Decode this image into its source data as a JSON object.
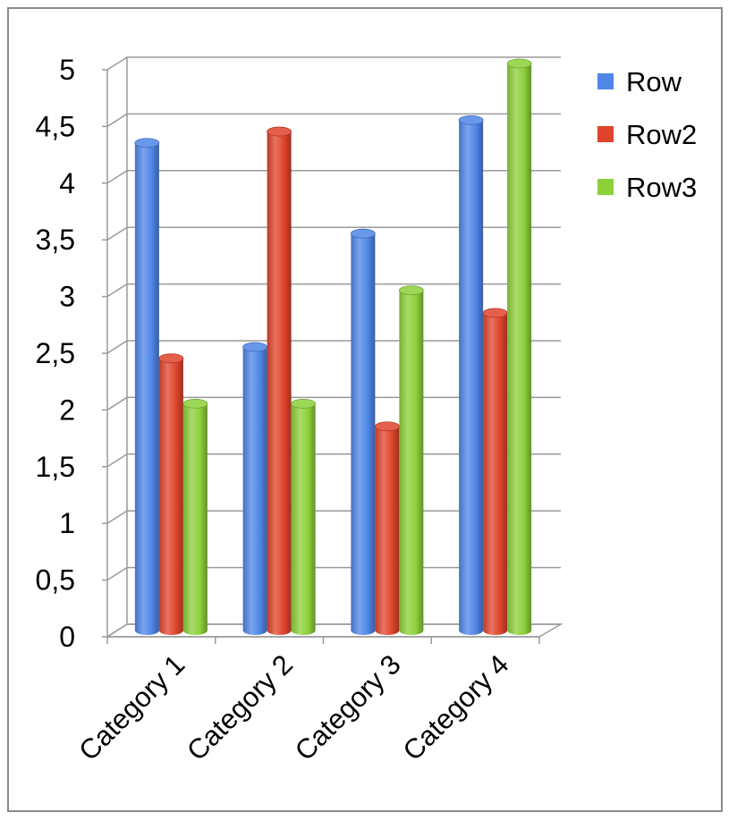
{
  "chart_data": {
    "type": "bar",
    "style": "3d-cylinder",
    "categories": [
      "Category 1",
      "Category 2",
      "Category 3",
      "Category 4"
    ],
    "series": [
      {
        "name": "Row",
        "values": [
          4.3,
          2.5,
          3.5,
          4.5
        ],
        "color": "#4f86e8"
      },
      {
        "name": "Row2",
        "values": [
          2.4,
          4.4,
          1.8,
          2.8
        ],
        "color": "#e0442c"
      },
      {
        "name": "Row3",
        "values": [
          2.0,
          2.0,
          3.0,
          5.0
        ],
        "color": "#8cd03a"
      }
    ],
    "y_ticks": [
      "0",
      "0,5",
      "1",
      "1,5",
      "2",
      "2,5",
      "3",
      "3,5",
      "4",
      "4,5",
      "5"
    ],
    "ylim": [
      0,
      5
    ],
    "grid": true,
    "legend_position": "right"
  }
}
